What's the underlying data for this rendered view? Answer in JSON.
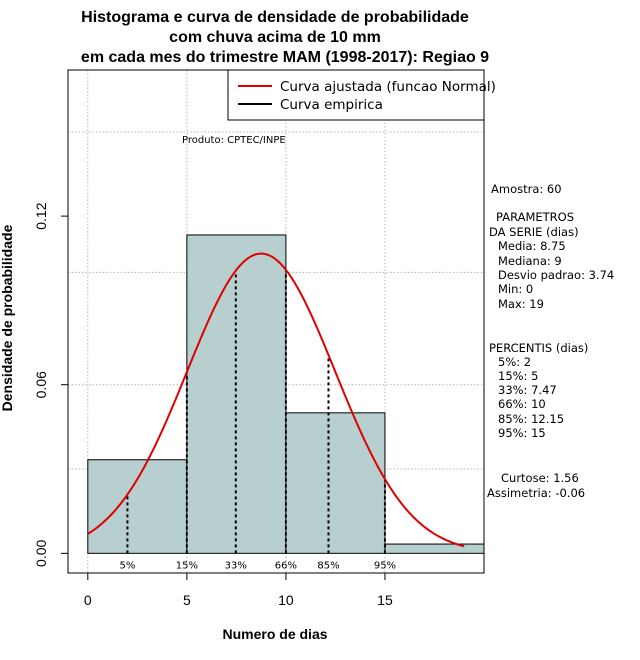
{
  "chart_data": {
    "type": "histogram",
    "title": [
      "Histograma e curva de densidade de probabilidade",
      "com chuva acima de 10 mm",
      "em cada mes do trimestre MAM (1998-2017): Regiao 9"
    ],
    "xlabel": "Numero de dias",
    "ylabel": "Densidade de probabilidade",
    "xlim": [
      -1,
      20
    ],
    "ylim": [
      -0.007,
      0.172
    ],
    "xticks": [
      0,
      5,
      10,
      15
    ],
    "yticks": [
      0.0,
      0.06,
      0.12
    ],
    "ytick_labels": [
      "0.00",
      "0.06",
      "0.12"
    ],
    "grid_x": [
      0,
      5,
      10,
      15
    ],
    "grid_y": [
      0.03,
      0.06,
      0.1,
      0.15
    ],
    "bins": [
      {
        "start": 0,
        "end": 5,
        "density": 0.0333
      },
      {
        "start": 5,
        "end": 10,
        "density": 0.1133
      },
      {
        "start": 10,
        "end": 15,
        "density": 0.05
      },
      {
        "start": 15,
        "end": 20,
        "density": 0.0033
      }
    ],
    "bar_color": "#b7cfcf",
    "fitted_curve": {
      "name": "Curva ajustada (funcao Normal)",
      "dist": "normal",
      "mean": 8.75,
      "sd": 3.74,
      "x_range": [
        0,
        19
      ],
      "color": "#e00000"
    },
    "empirical_curve": {
      "name": "Curva empirica",
      "color": "#000000"
    },
    "percentile_lines": [
      {
        "label": "5%",
        "x": 2
      },
      {
        "label": "15%",
        "x": 5
      },
      {
        "label": "33%",
        "x": 7.47
      },
      {
        "label": "66%",
        "x": 10
      },
      {
        "label": "85%",
        "x": 12.15
      },
      {
        "label": "95%",
        "x": 15
      }
    ],
    "legend_position": "top-right",
    "producer": "Produto: CPTEC/INPE"
  },
  "stats_panel": {
    "amostra": "Amostra: 60",
    "param_header": [
      "PARAMETROS",
      "DA SERIE (dias)"
    ],
    "params": [
      "Media: 8.75",
      "Mediana: 9",
      "Desvio padrao: 3.74",
      "Min: 0",
      "Max: 19"
    ],
    "perc_header": "PERCENTIS (dias)",
    "percentis": [
      "5%: 2",
      "15%: 5",
      "33%: 7.47",
      "66%: 10",
      "85%: 12.15",
      "95%: 15"
    ],
    "curtose": "Curtose: 1.56",
    "assimetria": "Assimetria: -0.06"
  }
}
